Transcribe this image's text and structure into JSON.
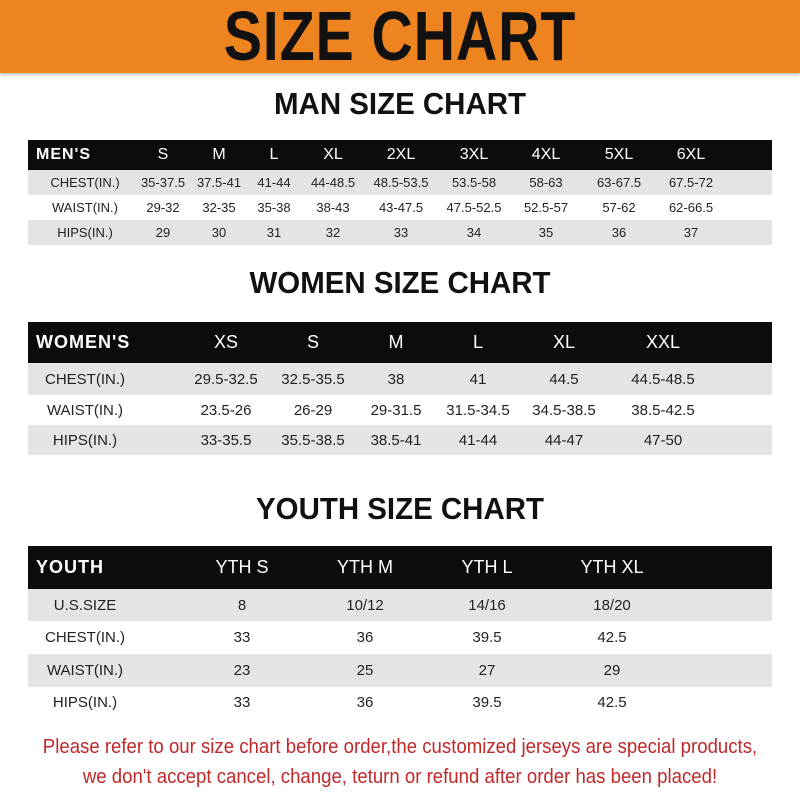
{
  "colors": {
    "banner": "#ee8420",
    "header_row": "#0c0c0c",
    "stripe": "#e4e4e4",
    "note": "#c0282a"
  },
  "banner": {
    "title": "SIZE CHART"
  },
  "men": {
    "title": "MAN SIZE CHART",
    "header": [
      "MEN'S",
      "S",
      "M",
      "L",
      "XL",
      "2XL",
      "3XL",
      "4XL",
      "5XL",
      "6XL"
    ],
    "rows": [
      [
        "CHEST(IN.)",
        "35-37.5",
        "37.5-41",
        "41-44",
        "44-48.5",
        "48.5-53.5",
        "53.5-58",
        "58-63",
        "63-67.5",
        "67.5-72"
      ],
      [
        "WAIST(IN.)",
        "29-32",
        "32-35",
        "35-38",
        "38-43",
        "43-47.5",
        "47.5-52.5",
        "52.5-57",
        "57-62",
        "62-66.5"
      ],
      [
        "HIPS(IN.)",
        "29",
        "30",
        "31",
        "32",
        "33",
        "34",
        "35",
        "36",
        "37"
      ]
    ]
  },
  "women": {
    "title": "WOMEN SIZE CHART",
    "header": [
      "WOMEN'S",
      "XS",
      "S",
      "M",
      "L",
      "XL",
      "XXL"
    ],
    "rows": [
      [
        "CHEST(IN.)",
        "29.5-32.5",
        "32.5-35.5",
        "38",
        "41",
        "44.5",
        "44.5-48.5"
      ],
      [
        "WAIST(IN.)",
        "23.5-26",
        "26-29",
        "29-31.5",
        "31.5-34.5",
        "34.5-38.5",
        "38.5-42.5"
      ],
      [
        "HIPS(IN.)",
        "33-35.5",
        "35.5-38.5",
        "38.5-41",
        "41-44",
        "44-47",
        "47-50"
      ]
    ]
  },
  "youth": {
    "title": "YOUTH SIZE CHART",
    "header": [
      "YOUTH",
      "YTH S",
      "YTH M",
      "YTH L",
      "YTH XL"
    ],
    "rows": [
      [
        "U.S.SIZE",
        "8",
        "10/12",
        "14/16",
        "18/20"
      ],
      [
        "CHEST(IN.)",
        "33",
        "36",
        "39.5",
        "42.5"
      ],
      [
        "WAIST(IN.)",
        "23",
        "25",
        "27",
        "29"
      ],
      [
        "HIPS(IN.)",
        "33",
        "36",
        "39.5",
        "42.5"
      ]
    ]
  },
  "note": {
    "line1": "Please refer to our size chart before order,the customized jerseys are special products,",
    "line2": "we don't accept cancel, change, teturn or refund after order has been placed!"
  }
}
